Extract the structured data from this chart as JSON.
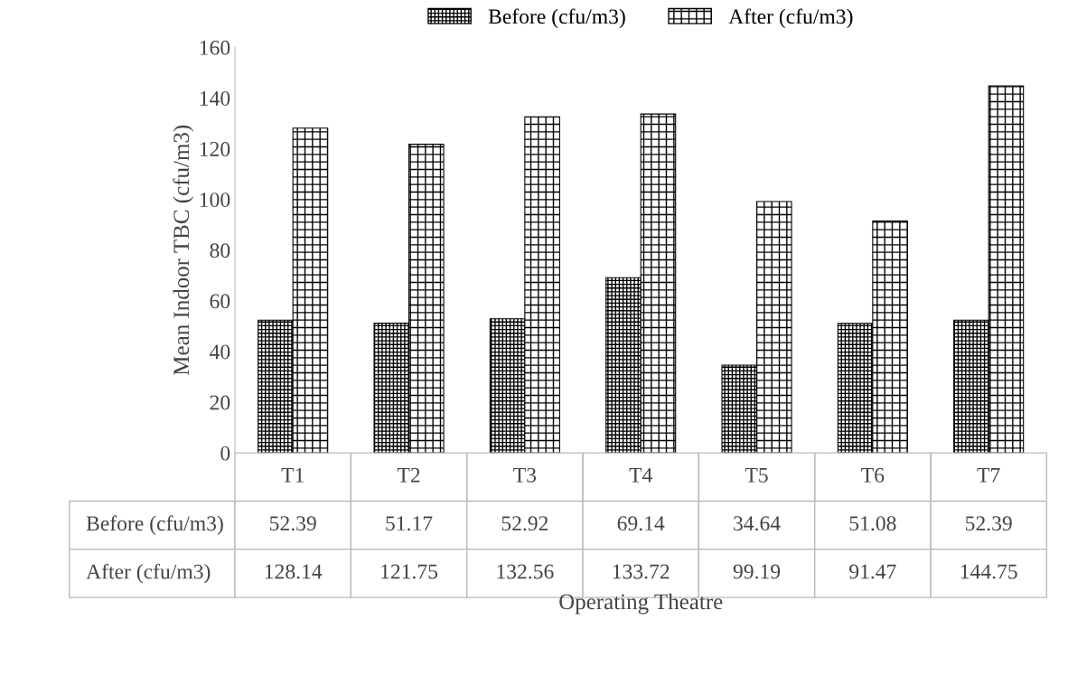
{
  "chart_data": {
    "type": "bar",
    "xlabel": "Operating Theatre",
    "ylabel": "Mean Indoor TBC (cfu/m3)",
    "categories": [
      "T1",
      "T2",
      "T3",
      "T4",
      "T5",
      "T6",
      "T7"
    ],
    "series": [
      {
        "name": "Before (cfu/m3)",
        "color": "#000000",
        "values": [
          52.39,
          51.17,
          52.92,
          69.14,
          34.64,
          51.08,
          52.39
        ]
      },
      {
        "name": "After (cfu/m3)",
        "color": "#000000",
        "values": [
          128.14,
          121.75,
          132.56,
          133.72,
          99.19,
          91.47,
          144.75
        ]
      }
    ],
    "ylim": [
      0,
      160
    ],
    "yticks": [
      0,
      20,
      40,
      60,
      80,
      100,
      120,
      140,
      160
    ],
    "data_labels": true,
    "legend": "top",
    "grid": false
  }
}
